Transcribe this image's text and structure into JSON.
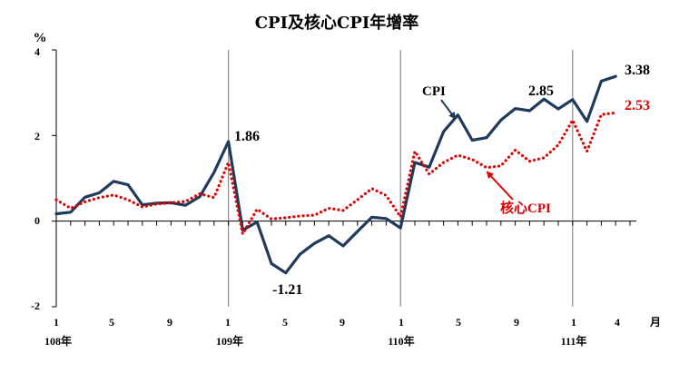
{
  "chart_data": {
    "type": "line",
    "title": "CPI及核心CPI年增率",
    "ylabel": "%",
    "ylim": [
      -2,
      4
    ],
    "y_ticks": [
      "4",
      "2",
      "0",
      "-2"
    ],
    "x_unit_label": "月",
    "x_month_ticks": [
      "1",
      "5",
      "9",
      "1",
      "5",
      "9",
      "1",
      "5",
      "9",
      "1",
      "4"
    ],
    "year_labels": [
      "108年",
      "109年",
      "110年",
      "111年"
    ],
    "months": [
      "108/1",
      "108/2",
      "108/3",
      "108/4",
      "108/5",
      "108/6",
      "108/7",
      "108/8",
      "108/9",
      "108/10",
      "108/11",
      "108/12",
      "109/1",
      "109/2",
      "109/3",
      "109/4",
      "109/5",
      "109/6",
      "109/7",
      "109/8",
      "109/9",
      "109/10",
      "109/11",
      "109/12",
      "110/1",
      "110/2",
      "110/3",
      "110/4",
      "110/5",
      "110/6",
      "110/7",
      "110/8",
      "110/9",
      "110/10",
      "110/11",
      "110/12",
      "111/1",
      "111/2",
      "111/3",
      "111/4"
    ],
    "series": [
      {
        "name": "CPI",
        "color": "#1f3a5a",
        "style": "solid",
        "values": [
          0.17,
          0.21,
          0.56,
          0.66,
          0.93,
          0.85,
          0.38,
          0.42,
          0.43,
          0.37,
          0.57,
          1.14,
          1.86,
          -0.21,
          -0.02,
          -0.99,
          -1.21,
          -0.77,
          -0.52,
          -0.34,
          -0.58,
          -0.24,
          0.09,
          0.06,
          -0.16,
          1.37,
          1.26,
          2.09,
          2.48,
          1.89,
          1.95,
          2.36,
          2.63,
          2.58,
          2.85,
          2.62,
          2.84,
          2.33,
          3.27,
          3.38
        ]
      },
      {
        "name": "核心CPI",
        "color": "#e00000",
        "style": "dotted",
        "values": [
          0.5,
          0.3,
          0.45,
          0.55,
          0.61,
          0.5,
          0.33,
          0.4,
          0.43,
          0.46,
          0.64,
          0.55,
          1.37,
          -0.3,
          0.28,
          0.05,
          0.08,
          0.12,
          0.14,
          0.3,
          0.25,
          0.5,
          0.76,
          0.6,
          0.1,
          1.63,
          1.1,
          1.37,
          1.54,
          1.44,
          1.25,
          1.29,
          1.66,
          1.4,
          1.48,
          1.78,
          2.36,
          1.63,
          2.49,
          2.53
        ]
      }
    ],
    "annotations": [
      "1.86",
      "-1.21",
      "2.85",
      "3.38",
      "2.53"
    ],
    "grid": false,
    "year_dividers": true,
    "legend": "inline labels with arrows"
  }
}
